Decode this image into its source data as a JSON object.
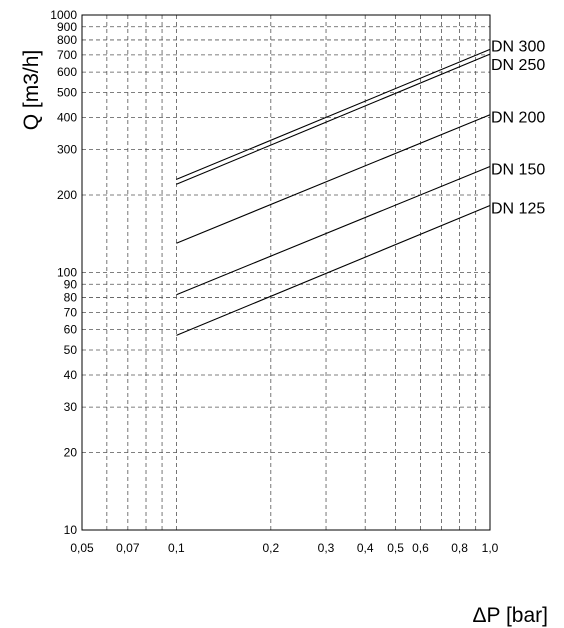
{
  "chart_data": {
    "type": "line",
    "title": "",
    "xlabel": "ΔP  [bar]",
    "ylabel": "Q  [m3/h]",
    "x_scale": "log",
    "y_scale": "log",
    "xlim": [
      0.05,
      1.0
    ],
    "ylim": [
      10,
      1000
    ],
    "grid": true,
    "legend": "inline-right",
    "x_ticks": [
      {
        "value": 0.05,
        "label": "0,05"
      },
      {
        "value": 0.07,
        "label": "0,07"
      },
      {
        "value": 0.1,
        "label": "0,1"
      },
      {
        "value": 0.2,
        "label": "0,2"
      },
      {
        "value": 0.3,
        "label": "0,3"
      },
      {
        "value": 0.4,
        "label": "0,4"
      },
      {
        "value": 0.5,
        "label": "0,5"
      },
      {
        "value": 0.6,
        "label": "0,6"
      },
      {
        "value": 0.8,
        "label": "0,8"
      },
      {
        "value": 1.0,
        "label": "1,0"
      }
    ],
    "x_grid": [
      0.05,
      0.06,
      0.07,
      0.08,
      0.09,
      0.1,
      0.2,
      0.3,
      0.4,
      0.5,
      0.6,
      0.7,
      0.8,
      0.9,
      1.0
    ],
    "y_ticks": [
      {
        "value": 10,
        "label": "10"
      },
      {
        "value": 20,
        "label": "20"
      },
      {
        "value": 30,
        "label": "30"
      },
      {
        "value": 40,
        "label": "40"
      },
      {
        "value": 50,
        "label": "50"
      },
      {
        "value": 60,
        "label": "60"
      },
      {
        "value": 70,
        "label": "70"
      },
      {
        "value": 80,
        "label": "80"
      },
      {
        "value": 90,
        "label": "90"
      },
      {
        "value": 100,
        "label": "100"
      },
      {
        "value": 200,
        "label": "200"
      },
      {
        "value": 300,
        "label": "300"
      },
      {
        "value": 400,
        "label": "400"
      },
      {
        "value": 500,
        "label": "500"
      },
      {
        "value": 600,
        "label": "600"
      },
      {
        "value": 700,
        "label": "700"
      },
      {
        "value": 800,
        "label": "800"
      },
      {
        "value": 900,
        "label": "900"
      },
      {
        "value": 1000,
        "label": "1000"
      }
    ],
    "series": [
      {
        "name": "DN 300",
        "x": [
          0.1,
          1.0
        ],
        "y": [
          230,
          735
        ]
      },
      {
        "name": "DN 250",
        "x": [
          0.1,
          1.0
        ],
        "y": [
          220,
          705
        ]
      },
      {
        "name": "DN 200",
        "x": [
          0.1,
          1.0
        ],
        "y": [
          130,
          410
        ]
      },
      {
        "name": "DN 150",
        "x": [
          0.1,
          1.0
        ],
        "y": [
          82,
          258
        ]
      },
      {
        "name": "DN 125",
        "x": [
          0.1,
          1.0
        ],
        "y": [
          57,
          182
        ]
      }
    ]
  }
}
